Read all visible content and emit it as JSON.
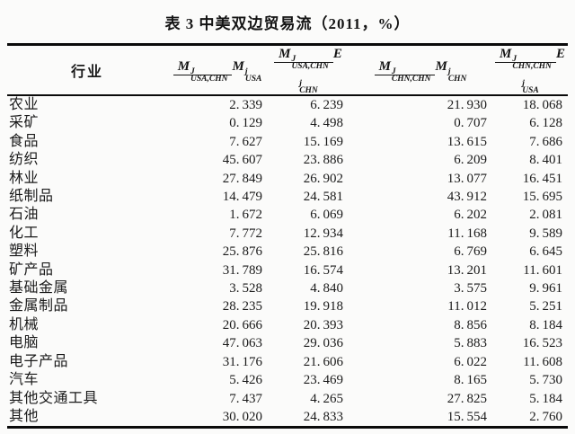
{
  "title": "表 3  中美双边贸易流（2011，%）",
  "colors": {
    "text": "#1a1a1a",
    "rule": "#0a0a0a",
    "background": "#fbfbfa"
  },
  "table": {
    "industry_header": "行业",
    "column_headers": [
      {
        "name": "ratio-M-USACHN-over-M-USA",
        "numerator": {
          "base": "M",
          "sup": "J",
          "sub": "USA,CHN"
        },
        "denominator": {
          "base": "M",
          "sup": "j",
          "sub": "USA"
        }
      },
      {
        "name": "ratio-M-USACHN-over-E-CHN",
        "numerator": {
          "base": "M",
          "sup": "J",
          "sub": "USA,CHN"
        },
        "denominator": {
          "base": "E",
          "sup": "j",
          "sub": "CHN"
        }
      },
      {
        "name": "ratio-M-CHNCHN-over-M-CHN",
        "numerator": {
          "base": "M",
          "sup": "J",
          "sub": "CHN,CHN"
        },
        "denominator": {
          "base": "M",
          "sup": "j",
          "sub": "CHN"
        }
      },
      {
        "name": "ratio-M-CHNCHN-over-E-USA",
        "numerator": {
          "base": "M",
          "sup": "J",
          "sub": "CHN,CHN"
        },
        "denominator": {
          "base": "E",
          "sup": "j",
          "sub": "USA"
        }
      }
    ],
    "rows": [
      {
        "industry": "农业",
        "values": [
          "2.339",
          "6.239",
          "21.930",
          "18.068"
        ]
      },
      {
        "industry": "采矿",
        "values": [
          "0.129",
          "4.498",
          "0.707",
          "6.128"
        ]
      },
      {
        "industry": "食品",
        "values": [
          "7.627",
          "15.169",
          "13.615",
          "7.686"
        ]
      },
      {
        "industry": "纺织",
        "values": [
          "45.607",
          "23.886",
          "6.209",
          "8.401"
        ]
      },
      {
        "industry": "林业",
        "values": [
          "27.849",
          "26.902",
          "13.077",
          "16.451"
        ]
      },
      {
        "industry": "纸制品",
        "values": [
          "14.479",
          "24.581",
          "43.912",
          "15.695"
        ]
      },
      {
        "industry": "石油",
        "values": [
          "1.672",
          "6.069",
          "6.202",
          "2.081"
        ]
      },
      {
        "industry": "化工",
        "values": [
          "7.772",
          "12.934",
          "11.168",
          "9.589"
        ]
      },
      {
        "industry": "塑料",
        "values": [
          "25.876",
          "25.816",
          "6.769",
          "6.645"
        ]
      },
      {
        "industry": "矿产品",
        "values": [
          "31.789",
          "16.574",
          "13.201",
          "11.601"
        ]
      },
      {
        "industry": "基础金属",
        "values": [
          "3.528",
          "4.840",
          "3.575",
          "9.961"
        ]
      },
      {
        "industry": "金属制品",
        "values": [
          "28.235",
          "19.918",
          "11.012",
          "5.251"
        ]
      },
      {
        "industry": "机械",
        "values": [
          "20.666",
          "20.393",
          "8.856",
          "8.184"
        ]
      },
      {
        "industry": "电脑",
        "values": [
          "47.063",
          "29.036",
          "5.883",
          "16.523"
        ]
      },
      {
        "industry": "电子产品",
        "values": [
          "31.176",
          "21.606",
          "6.022",
          "11.608"
        ]
      },
      {
        "industry": "汽车",
        "values": [
          "5.426",
          "23.469",
          "8.165",
          "5.730"
        ]
      },
      {
        "industry": "其他交通工具",
        "values": [
          "7.437",
          "4.265",
          "27.825",
          "5.184"
        ]
      },
      {
        "industry": "其他",
        "values": [
          "30.020",
          "24.833",
          "15.554",
          "2.760"
        ]
      }
    ]
  }
}
